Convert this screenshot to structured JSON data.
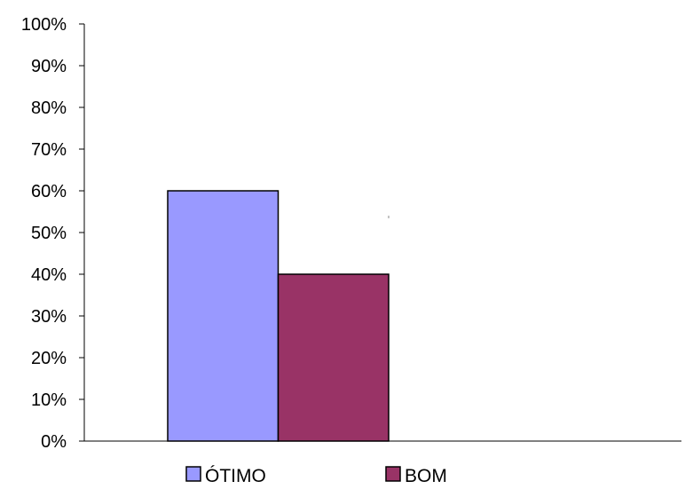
{
  "chart_data": {
    "type": "bar",
    "title": "",
    "xlabel": "",
    "ylabel": "",
    "ylim": [
      0,
      100
    ],
    "y_unit": "%",
    "y_ticks": [
      "0%",
      "10%",
      "20%",
      "30%",
      "40%",
      "50%",
      "60%",
      "70%",
      "80%",
      "90%",
      "100%"
    ],
    "grid": false,
    "legend_position": "bottom",
    "series": [
      {
        "name": "ÓTIMO",
        "values": [
          60
        ],
        "color": "#9999ff"
      },
      {
        "name": "BOM",
        "values": [
          40
        ],
        "color": "#993366"
      }
    ]
  }
}
